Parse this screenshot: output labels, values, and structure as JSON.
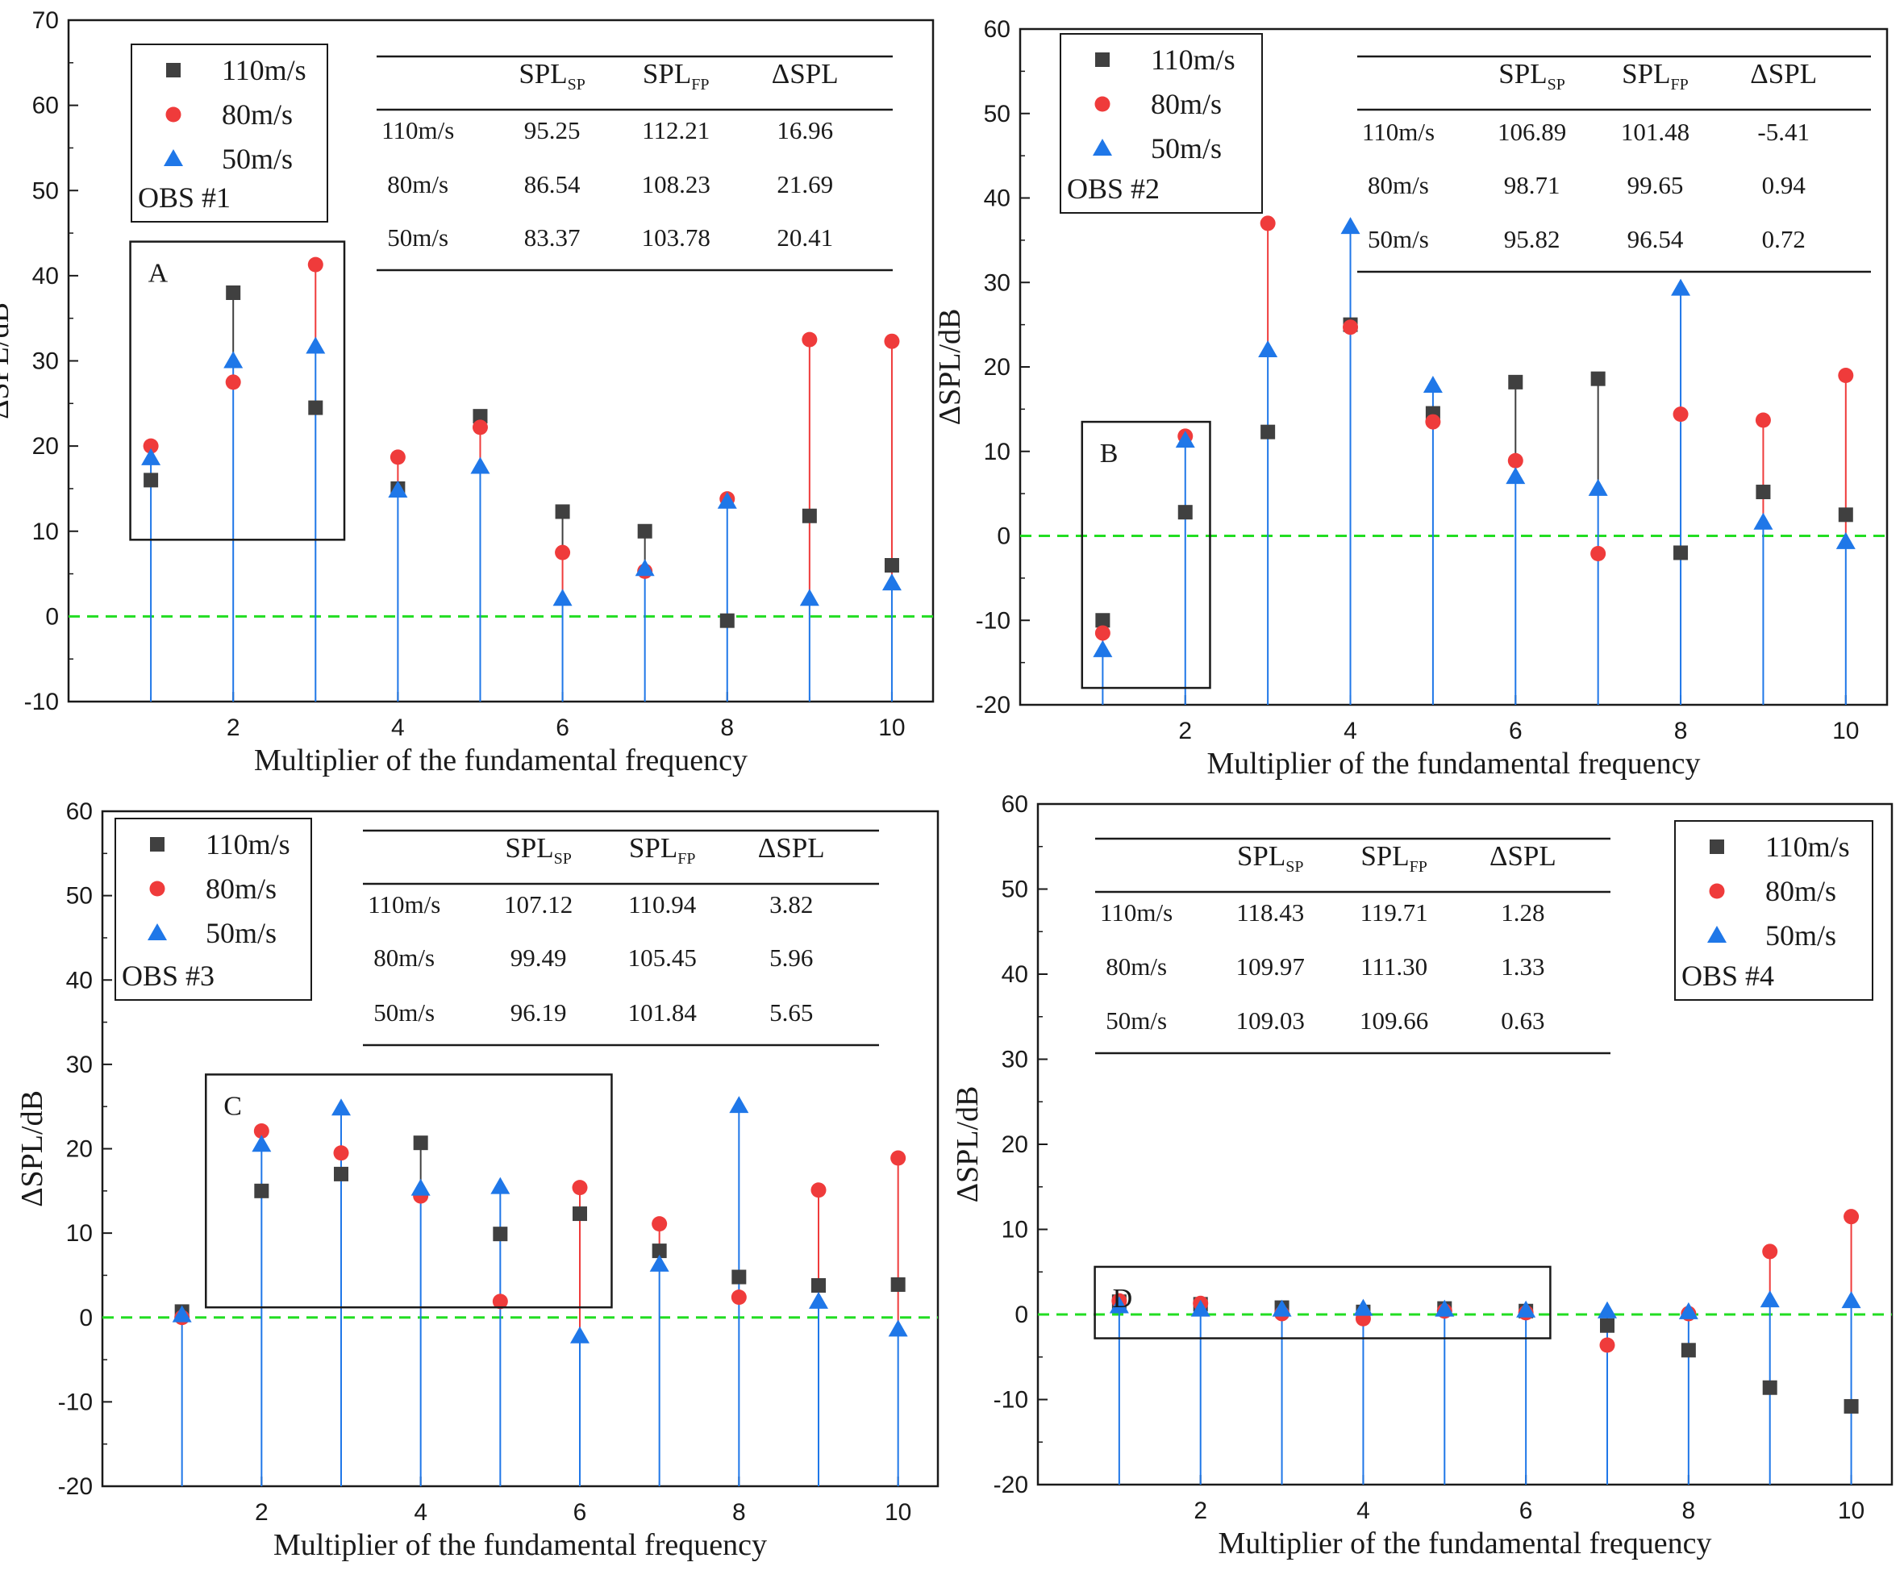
{
  "colors": {
    "110m/s": "#404040",
    "80m/s": "#ef3b3b",
    "50m/s": "#1f77e8",
    "zero_line": "#22dd22",
    "axis": "#1a1a1a"
  },
  "chart_data": [
    {
      "type": "scatter",
      "panel": "OBS #1",
      "xlabel": "Multiplier of the fundamental frequency",
      "ylabel": "ΔSPL/dB",
      "xlim": [
        0.0,
        10.5
      ],
      "ylim": [
        -10,
        70
      ],
      "xticks": [
        "2",
        "4",
        "6",
        "8",
        "10"
      ],
      "yticks": [
        "-10",
        "0",
        "10",
        "20",
        "30",
        "40",
        "50",
        "60",
        "70"
      ],
      "x": [
        1,
        2,
        3,
        4,
        5,
        6,
        7,
        8,
        9,
        10
      ],
      "series": [
        {
          "name": "110m/s",
          "marker": "square",
          "values": [
            16.0,
            38.0,
            24.5,
            15.0,
            23.5,
            12.3,
            10.0,
            -0.5,
            11.8,
            6.0
          ]
        },
        {
          "name": "80m/s",
          "marker": "circle",
          "values": [
            20.0,
            27.5,
            41.3,
            18.7,
            22.2,
            7.5,
            5.3,
            13.8,
            32.5,
            32.3
          ]
        },
        {
          "name": "50m/s",
          "marker": "triangle",
          "values": [
            18.6,
            30.0,
            31.7,
            14.8,
            17.6,
            2.1,
            5.6,
            13.5,
            2.1,
            3.9
          ]
        }
      ],
      "legend": {
        "entries": [
          "110m/s",
          "80m/s",
          "50m/s"
        ],
        "label": "OBS #1",
        "placement": "top-left"
      },
      "table": {
        "headers": [
          "",
          "SPLSP",
          "SPLFP",
          "ΔSPL"
        ],
        "rows": [
          [
            "110m/s",
            "95.25",
            "112.21",
            "16.96"
          ],
          [
            "80m/s",
            "86.54",
            "108.23",
            "21.69"
          ],
          [
            "50m/s",
            "83.37",
            "103.78",
            "20.41"
          ]
        ]
      },
      "annotation": {
        "label": "A",
        "x_range": [
          0.75,
          3.35
        ],
        "y_range": [
          9,
          44
        ]
      }
    },
    {
      "type": "scatter",
      "panel": "OBS #2",
      "xlabel": "Multiplier of the fundamental frequency",
      "ylabel": "ΔSPL/dB",
      "xlim": [
        0.0,
        10.5
      ],
      "ylim": [
        -20,
        60
      ],
      "xticks": [
        "2",
        "4",
        "6",
        "8",
        "10"
      ],
      "yticks": [
        "-20",
        "-10",
        "0",
        "10",
        "20",
        "30",
        "40",
        "50",
        "60"
      ],
      "x": [
        1,
        2,
        3,
        4,
        5,
        6,
        7,
        8,
        9,
        10
      ],
      "series": [
        {
          "name": "110m/s",
          "marker": "square",
          "values": [
            -10.0,
            2.8,
            12.3,
            25.0,
            14.5,
            18.2,
            18.6,
            -2.0,
            5.2,
            2.5
          ]
        },
        {
          "name": "80m/s",
          "marker": "circle",
          "values": [
            -11.5,
            11.8,
            37.0,
            24.7,
            13.5,
            8.9,
            -2.1,
            14.4,
            13.7,
            19.0
          ]
        },
        {
          "name": "50m/s",
          "marker": "triangle",
          "values": [
            -13.5,
            11.3,
            22.0,
            36.6,
            17.8,
            7.0,
            5.6,
            29.3,
            1.6,
            -0.7
          ]
        }
      ],
      "legend": {
        "entries": [
          "110m/s",
          "80m/s",
          "50m/s"
        ],
        "label": "OBS #2",
        "placement": "top-left"
      },
      "table": {
        "headers": [
          "",
          "SPLSP",
          "SPLFP",
          "ΔSPL"
        ],
        "rows": [
          [
            "110m/s",
            "106.89",
            "101.48",
            "-5.41"
          ],
          [
            "80m/s",
            "98.71",
            "99.65",
            "0.94"
          ],
          [
            "50m/s",
            "95.82",
            "96.54",
            "0.72"
          ]
        ]
      },
      "annotation": {
        "label": "B",
        "x_range": [
          0.75,
          2.3
        ],
        "y_range": [
          -18,
          13.5
        ]
      }
    },
    {
      "type": "scatter",
      "panel": "OBS #3",
      "xlabel": "Multiplier of the fundamental frequency",
      "ylabel": "ΔSPL/dB",
      "xlim": [
        0.0,
        10.5
      ],
      "ylim": [
        -20,
        60
      ],
      "xticks": [
        "2",
        "4",
        "6",
        "8",
        "10"
      ],
      "yticks": [
        "-20",
        "-10",
        "0",
        "10",
        "20",
        "30",
        "40",
        "50",
        "60"
      ],
      "x": [
        1,
        2,
        3,
        4,
        5,
        6,
        7,
        8,
        9,
        10
      ],
      "series": [
        {
          "name": "110m/s",
          "marker": "square",
          "values": [
            0.7,
            15.0,
            17.0,
            20.7,
            9.9,
            12.3,
            7.9,
            4.8,
            3.8,
            3.9
          ]
        },
        {
          "name": "80m/s",
          "marker": "circle",
          "values": [
            0.0,
            22.1,
            19.5,
            14.4,
            1.9,
            15.4,
            11.1,
            2.4,
            15.1,
            18.9
          ]
        },
        {
          "name": "50m/s",
          "marker": "triangle",
          "values": [
            0.3,
            20.5,
            24.8,
            15.3,
            15.5,
            -2.2,
            6.3,
            25.1,
            1.9,
            -1.4
          ]
        }
      ],
      "legend": {
        "entries": [
          "110m/s",
          "80m/s",
          "50m/s"
        ],
        "label": "OBS #3",
        "placement": "top-left"
      },
      "table": {
        "headers": [
          "",
          "SPLSP",
          "SPLFP",
          "ΔSPL"
        ],
        "rows": [
          [
            "110m/s",
            "107.12",
            "110.94",
            "3.82"
          ],
          [
            "80m/s",
            "99.49",
            "105.45",
            "5.96"
          ],
          [
            "50m/s",
            "96.19",
            "101.84",
            "5.65"
          ]
        ]
      },
      "annotation": {
        "label": "C",
        "x_range": [
          1.3,
          6.4
        ],
        "y_range": [
          1.2,
          28.8
        ]
      }
    },
    {
      "type": "scatter",
      "panel": "OBS #4",
      "xlabel": "Multiplier of the fundamental frequency",
      "ylabel": "ΔSPL/dB",
      "xlim": [
        0.0,
        10.5
      ],
      "ylim": [
        -20,
        60
      ],
      "xticks": [
        "2",
        "4",
        "6",
        "8",
        "10"
      ],
      "yticks": [
        "-20",
        "-10",
        "0",
        "10",
        "20",
        "30",
        "40",
        "50",
        "60"
      ],
      "x": [
        1,
        2,
        3,
        4,
        5,
        6,
        7,
        8,
        9,
        10
      ],
      "series": [
        {
          "name": "110m/s",
          "marker": "square",
          "values": [
            1.5,
            1.2,
            0.8,
            0.3,
            0.7,
            0.4,
            -1.3,
            -4.2,
            -8.6,
            -10.8
          ]
        },
        {
          "name": "80m/s",
          "marker": "circle",
          "values": [
            1.6,
            1.3,
            0.1,
            -0.5,
            0.4,
            0.2,
            -3.6,
            0.1,
            7.4,
            11.5
          ]
        },
        {
          "name": "50m/s",
          "marker": "triangle",
          "values": [
            1.0,
            0.6,
            0.6,
            0.7,
            0.6,
            0.5,
            0.4,
            0.3,
            1.7,
            1.6
          ]
        }
      ],
      "legend": {
        "entries": [
          "110m/s",
          "80m/s",
          "50m/s"
        ],
        "label": "OBS #4",
        "placement": "top-right"
      },
      "table": {
        "headers": [
          "",
          "SPLSP",
          "SPLFP",
          "ΔSPL"
        ],
        "rows": [
          [
            "110m/s",
            "118.43",
            "119.71",
            "1.28"
          ],
          [
            "80m/s",
            "109.97",
            "111.30",
            "1.33"
          ],
          [
            "50m/s",
            "109.03",
            "109.66",
            "0.63"
          ]
        ]
      },
      "annotation": {
        "label": "D",
        "x_range": [
          0.7,
          6.3
        ],
        "y_range": [
          -2.8,
          5.6
        ]
      }
    }
  ]
}
